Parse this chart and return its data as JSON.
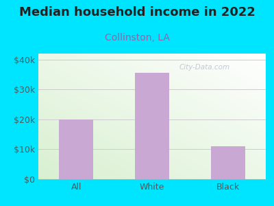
{
  "title": "Median household income in 2022",
  "subtitle": "Collinston, LA",
  "categories": [
    "All",
    "White",
    "Black"
  ],
  "values": [
    20000,
    35500,
    11000
  ],
  "bar_color": "#c9a8d4",
  "title_fontsize": 13,
  "subtitle_fontsize": 10,
  "subtitle_color": "#9b5fa5",
  "tick_color": "#555555",
  "background_outer": "#00e5ff",
  "ylim": [
    0,
    42000
  ],
  "yticks": [
    0,
    10000,
    20000,
    30000,
    40000
  ],
  "ytick_labels": [
    "$0",
    "$10k",
    "$20k",
    "$30k",
    "$40k"
  ],
  "watermark": "City-Data.com",
  "grid_color": "#cccccc",
  "bar_width": 0.45
}
